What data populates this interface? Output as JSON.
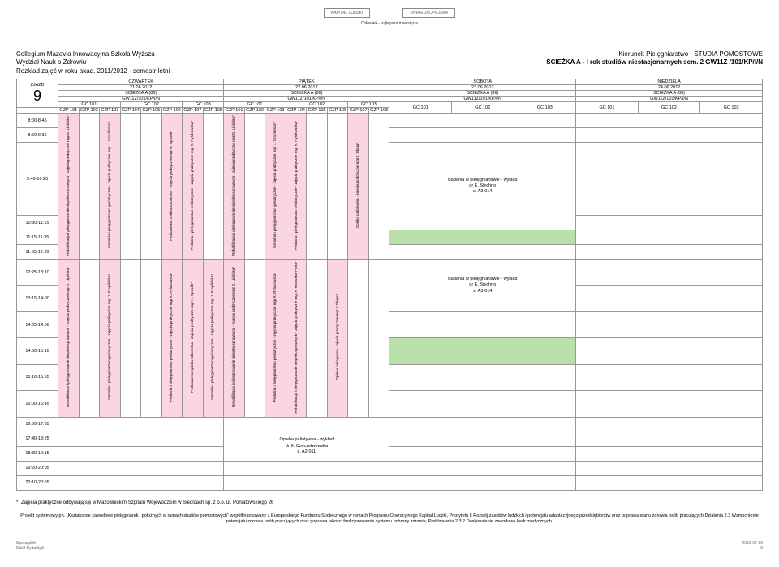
{
  "logos": {
    "left": "KAPITAŁ LUDZKI",
    "right": "UNIA EUROPEJSKA"
  },
  "logo_caption": "Człowiek - najlepsza inwestycja",
  "header": {
    "school1": "Collegium Mazovia Innowacyjna Szkoła Wyższa",
    "school2": "Wydział Nauk o Zdrowiu",
    "school3": "Rozkład zajęć w roku akad. 2011/2012 - semestr letni",
    "kierunek1": "Kierunek Pielęgniarstwo - STUDIA POMOSTOWE",
    "kierunek2": "ŚCIEŻKA A - I rok studiów niestacjonarnych sem. 2 GW11Z /101/KP/I/N"
  },
  "zjazd": {
    "label": "ZJAZD",
    "num": "9"
  },
  "days": {
    "czwartek": "CZWARTEK",
    "piatek": "PIĄTEK",
    "sobota": "SOBOTA",
    "niedziela": "NIEDZIELA"
  },
  "dates": {
    "d1": "21.06.2012",
    "d2": "22.06.2012",
    "d3": "23.06.2012",
    "d4": "24.06.2012"
  },
  "path": "ŚCIEŻKA A (86)",
  "gw": "GW11Z/101/KP/I/N",
  "gc": {
    "g101": "GC 101",
    "g102": "GC 102",
    "g103": "GC 103"
  },
  "gzp": {
    "101": "GZP 101",
    "102": "GZP 102",
    "103": "GZP 103",
    "104": "GZP 104",
    "105": "GZP 105",
    "106": "GZP 106",
    "107": "GZP 107",
    "108": "GZP 108"
  },
  "times": {
    "t1": "8:00-8:45",
    "t2": "8:50-9:35",
    "t3": "9:40-10:25",
    "t4": "10:30-11:15",
    "t5": "11:15-11:35",
    "t6": "11:35-12:20",
    "t7": "12:25-13:10",
    "t8": "13:15-14:00",
    "t9": "14:05-14:50",
    "t10": "14:50-15:10",
    "t11": "15:10-15:55",
    "t12": "16:00-16:45",
    "t13": "16:50-17:35",
    "t14": "17:40-18:25",
    "t15": "18:30-19:15",
    "t16": "19:20-20:05",
    "t17": "20:10-20:55"
  },
  "courses": {
    "rehab": "Rehabilitacja i pielęgnowanie niepełnosprawnych - zajęcia praktyczne  mgr E. Lipińska*",
    "geriatria": "Geriatria i pielęgniarstwo geriatryczne - zajęcia praktyczne  mgr J. Szuplińska*",
    "podst_zdrow": "Podstawowa opieka zdrowotna - zajęcia praktyczne  mgr H. Sposób*",
    "pediatria": "Pediatria i pielęgniarstwo pediatryczne - zajęcia praktyczne  mgr K. Rylukowska*",
    "rehab2": "Rehabilitacja i pielęgnowanie niepełnosprawnych - zajęcia praktyczne  mgr E. Lipińska*",
    "geriatria2": "Geriatria i pielęgniarstwo geriatryczne - zajęcia praktyczne  mgr J. Szuplińska*",
    "pediatria2": "Pediatria i pielęgniarstwo pediatryczne - zajęcia praktyczne  mgr K. Rylukowska*",
    "opieka_pal": "Opieka paliatywna - zajęcia praktyczne  mgr I. Długa*",
    "rehab_kp": "Rehabilitacja i pielęgnowanie niepełnosprawnych - zajęcia praktyczne  mgr A. Krasuska-Pytka*",
    "badania": "Badania w pielęgniarstwie - wykład",
    "badania_person": "dr E. Stychno",
    "badania_room": "s. A3-014",
    "opieka_wyklad": "Opieka paliatywna - wykład",
    "opieka_person": "dr E. Czeczelwewska",
    "opieka_room": "s. A2-011"
  },
  "footnote": "*) Zajęcia praktyczne odbywają się w Mazowieckim Szpitalu Wojewódzkim w Siedlcach sp. z o.o.  ul. Poniatowskiego 26",
  "project": "Projekt systemowy pn. „Kształcenie zawodowe pielęgniarek i położnych w ramach studiów pomostowych\" współfinansowany z Europejskiego Funduszu Społecznego w ramach Programu Operacyjnego Kapitał Ludzki, Priorytetu II Rozwój zasobów ludzkich i potencjału adaptacyjnego przedsiębiorstw oraz poprawa stanu zdrowia osób pracujących Działania 2.3 Wzmocnienie potencjału zdrowia osób pracujących oraz poprawa jakości funkcjonowania systemu ochrony zdrowia, Poddziałania 2.3.2 Doskonalenie zawodowe kadr medycznych.",
  "footer": {
    "left1": "Sporządził:",
    "left2": "Dział Dydaktyki",
    "right1": "2013-02-19",
    "right2": "9"
  }
}
